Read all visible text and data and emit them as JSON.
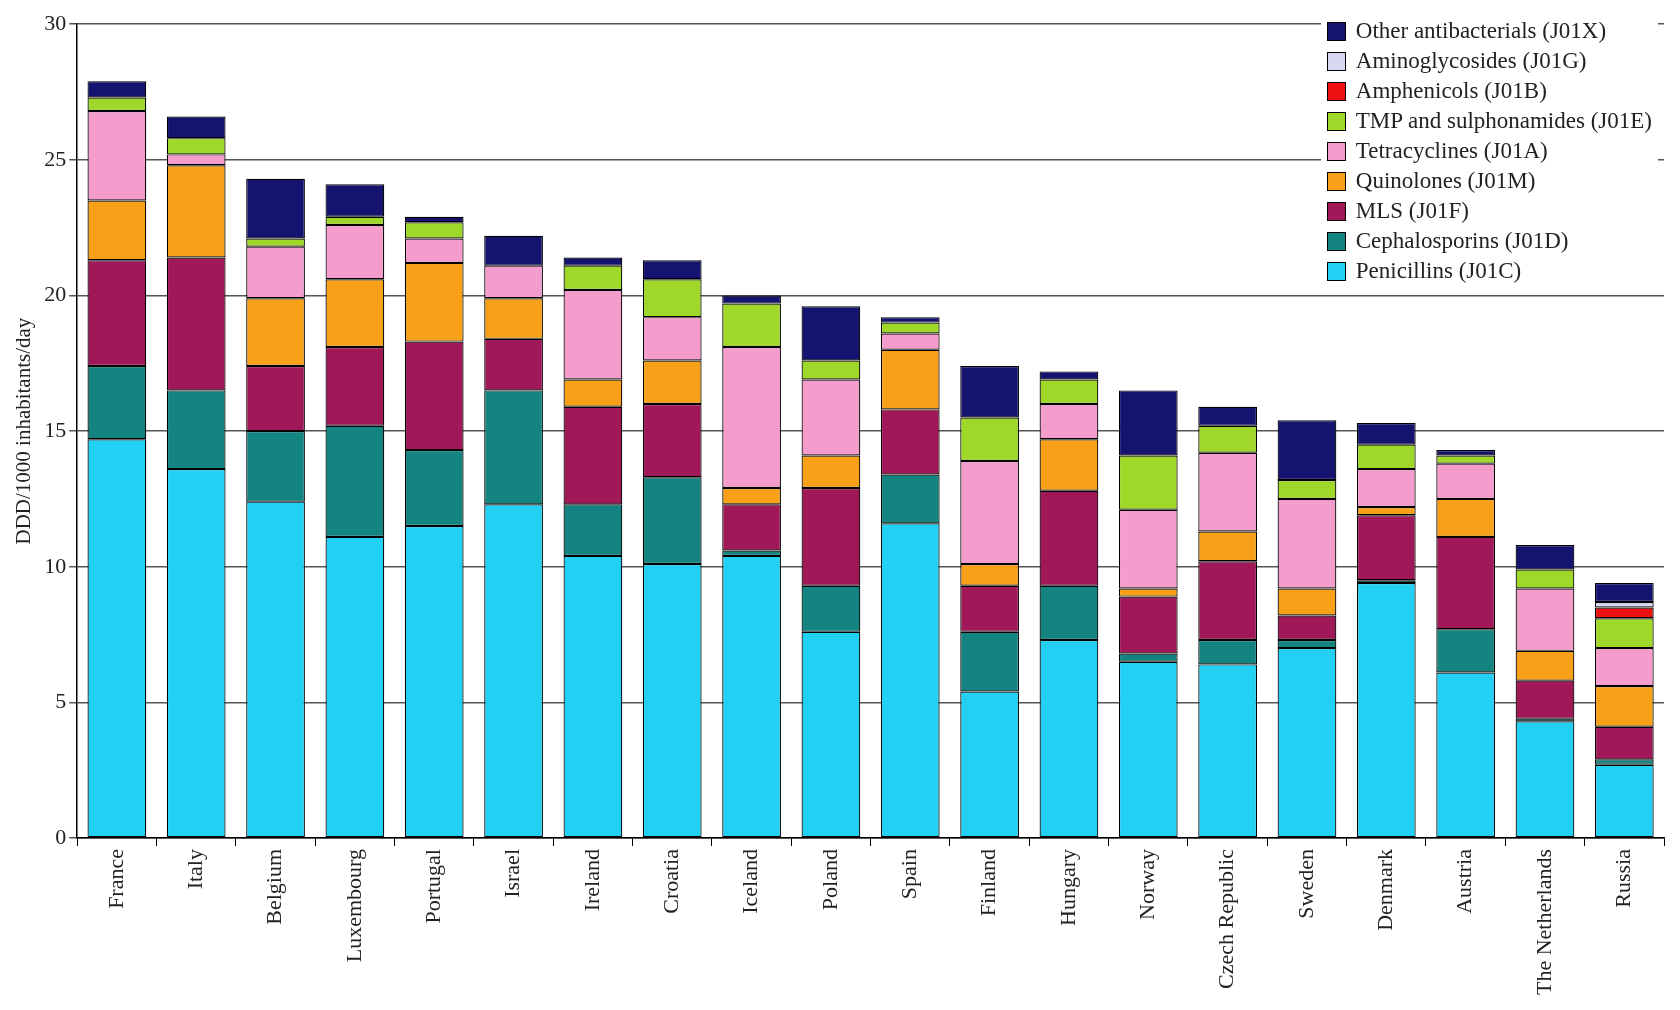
{
  "chart_data": {
    "type": "bar",
    "stacked": true,
    "ylabel": "DDD/1000 inhabitants/day",
    "categories": [
      "France",
      "Italy",
      "Belgium",
      "Luxembourg",
      "Portugal",
      "Israel",
      "Ireland",
      "Croatia",
      "Iceland",
      "Poland",
      "Spain",
      "Finland",
      "Hungary",
      "Norway",
      "Czech Republic",
      "Sweden",
      "Denmark",
      "Austria",
      "The Netherlands",
      "Russia"
    ],
    "series": [
      {
        "name": "Penicillins (J01C)",
        "color": "#22d0f4",
        "values": [
          14.7,
          13.6,
          12.4,
          11.1,
          11.5,
          12.3,
          10.4,
          10.1,
          10.4,
          7.6,
          11.6,
          5.4,
          7.3,
          6.5,
          6.4,
          7.0,
          9.4,
          6.1,
          4.3,
          2.7
        ]
      },
      {
        "name": "Cephalosporins (J01D)",
        "color": "#138480",
        "values": [
          2.7,
          2.9,
          2.6,
          4.1,
          2.8,
          4.2,
          1.9,
          3.2,
          0.2,
          1.7,
          1.8,
          2.2,
          2.0,
          0.3,
          0.9,
          0.3,
          0.1,
          1.6,
          0.1,
          0.2
        ]
      },
      {
        "name": "MLS (J01F)",
        "color": "#a01858",
        "values": [
          3.9,
          4.9,
          2.4,
          2.9,
          4.0,
          1.9,
          3.6,
          2.7,
          1.7,
          3.6,
          2.4,
          1.7,
          3.5,
          2.1,
          2.9,
          0.9,
          2.4,
          3.4,
          1.4,
          1.2
        ]
      },
      {
        "name": "Quinolones (J01M)",
        "color": "#f8a018",
        "values": [
          2.2,
          3.4,
          2.5,
          2.5,
          2.9,
          1.5,
          1.0,
          1.6,
          0.6,
          1.2,
          2.2,
          0.8,
          1.9,
          0.3,
          1.1,
          1.0,
          0.3,
          1.4,
          1.1,
          1.5
        ]
      },
      {
        "name": "Tetracyclines (J01A)",
        "color": "#f49ccc",
        "values": [
          3.3,
          0.4,
          1.9,
          2.0,
          0.9,
          1.2,
          3.3,
          1.6,
          5.2,
          2.8,
          0.6,
          3.8,
          1.3,
          2.9,
          2.9,
          3.3,
          1.4,
          1.3,
          2.3,
          1.4
        ]
      },
      {
        "name": "TMP and sulphonamides (J01E)",
        "color": "#a0d82a",
        "values": [
          0.5,
          0.6,
          0.3,
          0.3,
          0.6,
          null,
          0.9,
          1.4,
          1.6,
          0.7,
          0.4,
          1.6,
          0.9,
          2.0,
          1.0,
          0.7,
          0.9,
          0.3,
          0.7,
          1.1
        ]
      },
      {
        "name": "Amphenicols (J01B)",
        "color": "#ee1111",
        "values": [
          null,
          null,
          null,
          null,
          null,
          null,
          null,
          null,
          null,
          null,
          null,
          null,
          null,
          null,
          null,
          null,
          null,
          null,
          null,
          0.4
        ]
      },
      {
        "name": "Aminoglycosides (J01G)",
        "color": "#d8d8f0",
        "values": [
          null,
          null,
          null,
          null,
          null,
          null,
          null,
          null,
          null,
          null,
          null,
          null,
          null,
          null,
          null,
          null,
          null,
          null,
          null,
          0.2
        ]
      },
      {
        "name": "Other antibacterials (J01X)",
        "color": "#141470",
        "values": [
          0.6,
          0.8,
          2.2,
          1.2,
          0.2,
          1.1,
          0.3,
          0.7,
          0.3,
          2.0,
          0.2,
          1.9,
          0.3,
          2.4,
          0.7,
          2.2,
          0.8,
          0.2,
          0.9,
          0.7
        ]
      }
    ],
    "ylim": [
      0,
      30
    ],
    "yticks": [
      0,
      5,
      10,
      15,
      20,
      25,
      30
    ],
    "grid": "y",
    "legend": "top right"
  }
}
